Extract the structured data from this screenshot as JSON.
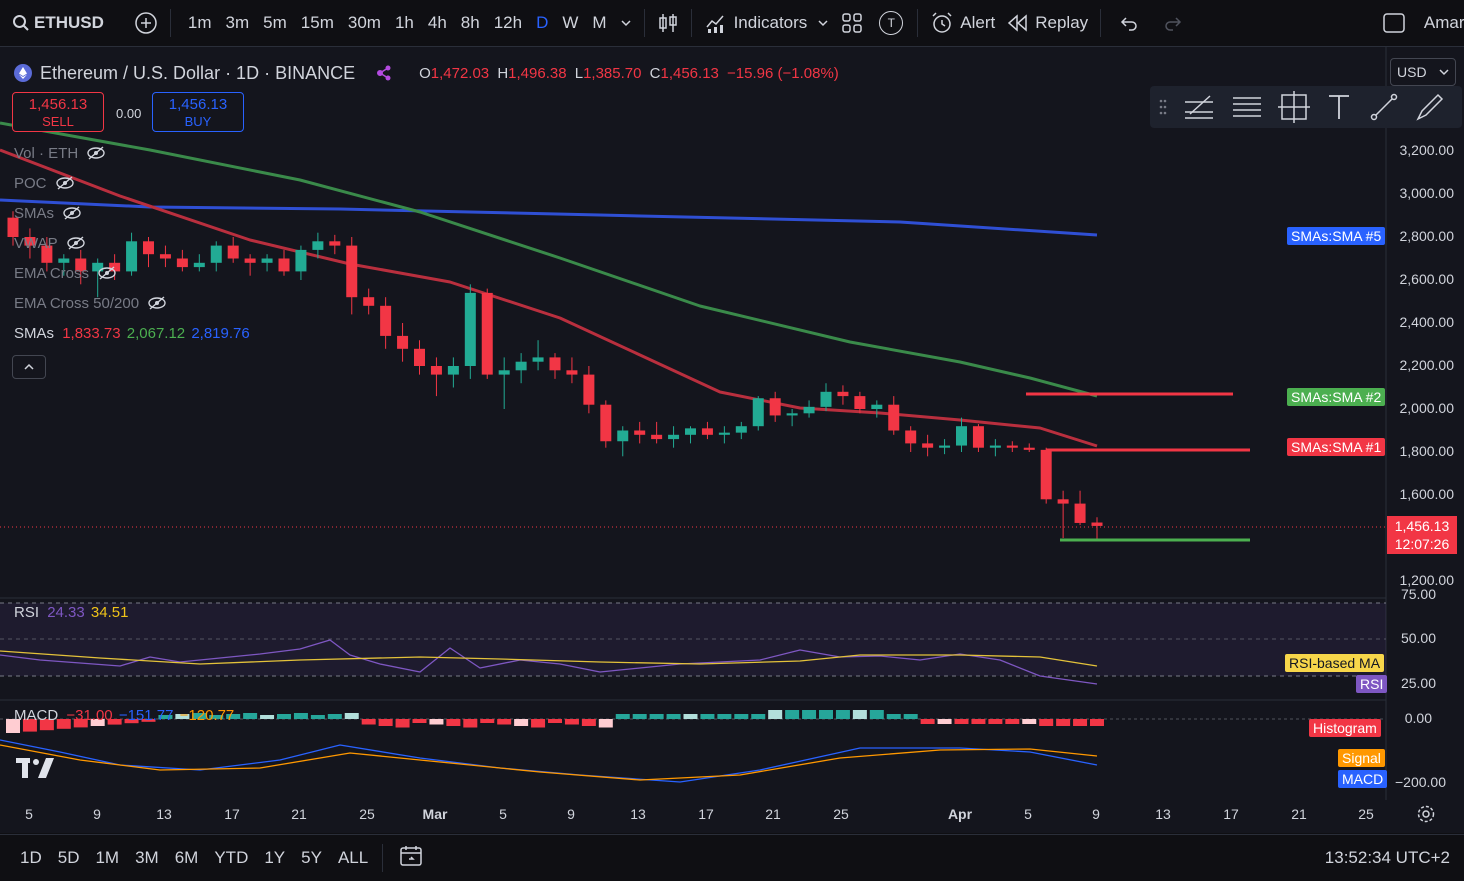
{
  "topbar": {
    "symbol": "ETHUSD",
    "timeframes": [
      "1m",
      "3m",
      "5m",
      "15m",
      "30m",
      "1h",
      "4h",
      "8h",
      "12h",
      "D",
      "W",
      "M"
    ],
    "active_timeframe": "D",
    "indicators_label": "Indicators",
    "alert_label": "Alert",
    "replay_label": "Replay",
    "layout_name": "Amara",
    "t_label": "T"
  },
  "header": {
    "title": "Ethereum / U.S. Dollar · 1D · BINANCE",
    "o_label": "O",
    "o": "1,472.03",
    "h_label": "H",
    "h": "1,496.38",
    "l_label": "L",
    "l": "1,385.70",
    "c_label": "C",
    "c": "1,456.13",
    "change": "−15.96 (−1.08%)",
    "sell_price": "1,456.13",
    "sell_label": "SELL",
    "spread": "0.00",
    "buy_price": "1,456.13",
    "buy_label": "BUY",
    "currency": "USD"
  },
  "legends": {
    "vol": "Vol · ETH",
    "poc": "POC",
    "smas": "SMAs",
    "vwap": "VWAP",
    "ema_cross": "EMA Cross",
    "ema_cross_50_200": "EMA Cross 50/200",
    "sma_label": "SMAs",
    "sma1": "1,833.73",
    "sma2": "2,067.12",
    "sma3": "2,819.76"
  },
  "price_axis": [
    "3,200.00",
    "3,000.00",
    "2,800.00",
    "2,600.00",
    "2,400.00",
    "2,200.00",
    "2,000.00",
    "1,800.00",
    "1,600.00",
    "1,200.00"
  ],
  "badges": {
    "sma5": "SMAs:SMA #5",
    "sma2": "SMAs:SMA #2",
    "sma1": "SMAs:SMA #1",
    "last_price": "1,456.13",
    "countdown": "12:07:26"
  },
  "rsi": {
    "label": "RSI",
    "value1": "24.33",
    "value2": "34.51",
    "axis": [
      "75.00",
      "50.00",
      "25.00"
    ],
    "badge_ma": "RSI-based MA",
    "badge_rsi": "RSI"
  },
  "macd": {
    "label": "MACD",
    "value1": "−31.00",
    "value2": "−151.77",
    "value3": "−120.77",
    "axis": [
      "0.00",
      "−200.00"
    ],
    "badge_hist": "Histogram",
    "badge_signal": "Signal",
    "badge_macd": "MACD"
  },
  "time_axis": [
    "5",
    "9",
    "13",
    "17",
    "21",
    "25",
    "Mar",
    "5",
    "9",
    "13",
    "17",
    "21",
    "25",
    "Apr",
    "5",
    "9",
    "13",
    "17",
    "21",
    "25"
  ],
  "bottombar": {
    "ranges": [
      "1D",
      "5D",
      "1M",
      "3M",
      "6M",
      "YTD",
      "1Y",
      "5Y",
      "ALL"
    ],
    "clock": "13:52:34 UTC+2"
  },
  "chart_data": {
    "type": "candlestick",
    "symbol": "ETHUSD",
    "interval": "1D",
    "candles_ohlc": [
      [
        2890,
        2920,
        2760,
        2800
      ],
      [
        2800,
        2840,
        2700,
        2760
      ],
      [
        2760,
        2800,
        2640,
        2680
      ],
      [
        2680,
        2720,
        2620,
        2700
      ],
      [
        2700,
        2740,
        2580,
        2640
      ],
      [
        2640,
        2700,
        2520,
        2680
      ],
      [
        2680,
        2720,
        2600,
        2640
      ],
      [
        2640,
        2820,
        2620,
        2780
      ],
      [
        2780,
        2800,
        2660,
        2720
      ],
      [
        2720,
        2760,
        2660,
        2700
      ],
      [
        2700,
        2740,
        2640,
        2660
      ],
      [
        2660,
        2720,
        2640,
        2680
      ],
      [
        2680,
        2780,
        2640,
        2760
      ],
      [
        2760,
        2800,
        2680,
        2700
      ],
      [
        2700,
        2720,
        2620,
        2680
      ],
      [
        2680,
        2720,
        2640,
        2700
      ],
      [
        2700,
        2740,
        2620,
        2640
      ],
      [
        2640,
        2760,
        2600,
        2740
      ],
      [
        2740,
        2820,
        2700,
        2780
      ],
      [
        2780,
        2810,
        2720,
        2760
      ],
      [
        2760,
        2800,
        2440,
        2520
      ],
      [
        2520,
        2560,
        2440,
        2480
      ],
      [
        2480,
        2520,
        2280,
        2340
      ],
      [
        2340,
        2400,
        2220,
        2280
      ],
      [
        2280,
        2320,
        2160,
        2200
      ],
      [
        2200,
        2240,
        2060,
        2160
      ],
      [
        2160,
        2240,
        2100,
        2200
      ],
      [
        2200,
        2580,
        2140,
        2540
      ],
      [
        2540,
        2560,
        2140,
        2160
      ],
      [
        2160,
        2240,
        2000,
        2180
      ],
      [
        2180,
        2260,
        2120,
        2220
      ],
      [
        2220,
        2320,
        2180,
        2240
      ],
      [
        2240,
        2260,
        2140,
        2180
      ],
      [
        2180,
        2240,
        2120,
        2160
      ],
      [
        2160,
        2200,
        1980,
        2020
      ],
      [
        2020,
        2040,
        1820,
        1850
      ],
      [
        1850,
        1920,
        1780,
        1900
      ],
      [
        1900,
        1940,
        1840,
        1880
      ],
      [
        1880,
        1940,
        1840,
        1860
      ],
      [
        1860,
        1920,
        1820,
        1880
      ],
      [
        1880,
        1920,
        1840,
        1910
      ],
      [
        1910,
        1940,
        1860,
        1880
      ],
      [
        1880,
        1920,
        1840,
        1890
      ],
      [
        1890,
        1940,
        1860,
        1920
      ],
      [
        1920,
        2060,
        1900,
        2050
      ],
      [
        2050,
        2080,
        1940,
        1970
      ],
      [
        1970,
        2000,
        1920,
        1980
      ],
      [
        1980,
        2040,
        1960,
        2010
      ],
      [
        2010,
        2120,
        1990,
        2080
      ],
      [
        2080,
        2110,
        2020,
        2060
      ],
      [
        2060,
        2080,
        1980,
        2000
      ],
      [
        2000,
        2040,
        1960,
        2020
      ],
      [
        2020,
        2060,
        1880,
        1900
      ],
      [
        1900,
        1920,
        1800,
        1840
      ],
      [
        1840,
        1880,
        1780,
        1820
      ],
      [
        1820,
        1860,
        1790,
        1830
      ],
      [
        1830,
        1960,
        1800,
        1920
      ],
      [
        1920,
        1930,
        1800,
        1820
      ],
      [
        1820,
        1860,
        1780,
        1830
      ],
      [
        1830,
        1850,
        1800,
        1820
      ],
      [
        1820,
        1840,
        1800,
        1810
      ],
      [
        1810,
        1820,
        1560,
        1580
      ],
      [
        1580,
        1620,
        1400,
        1560
      ],
      [
        1560,
        1620,
        1460,
        1470
      ],
      [
        1472.03,
        1496.38,
        1385.7,
        1456.13
      ]
    ],
    "series": [
      {
        "name": "SMA 1",
        "last": 1833.73
      },
      {
        "name": "SMA 2",
        "last": 2067.12
      },
      {
        "name": "SMA 3",
        "last": 2819.76
      }
    ],
    "ylim": [
      1150,
      3300
    ]
  }
}
